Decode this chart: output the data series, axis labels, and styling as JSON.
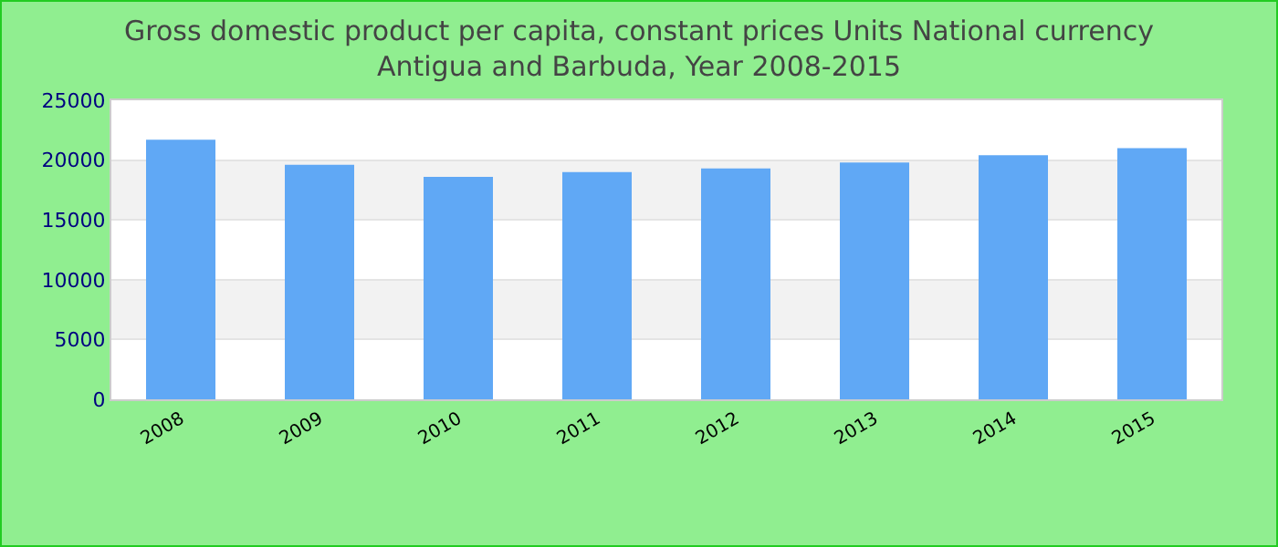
{
  "chart_data": {
    "type": "bar",
    "title": "Gross domestic product per capita, constant prices Units National currency\nAntigua and Barbuda, Year 2008-2015",
    "categories": [
      "2008",
      "2009",
      "2010",
      "2011",
      "2012",
      "2013",
      "2014",
      "2015"
    ],
    "values": [
      21700,
      19600,
      18600,
      19000,
      19300,
      19800,
      20400,
      21000
    ],
    "color": "#60a8f5",
    "ylim": [
      0,
      25000
    ],
    "yticks": [
      0,
      5000,
      10000,
      15000,
      20000,
      25000
    ],
    "grid": "y"
  }
}
